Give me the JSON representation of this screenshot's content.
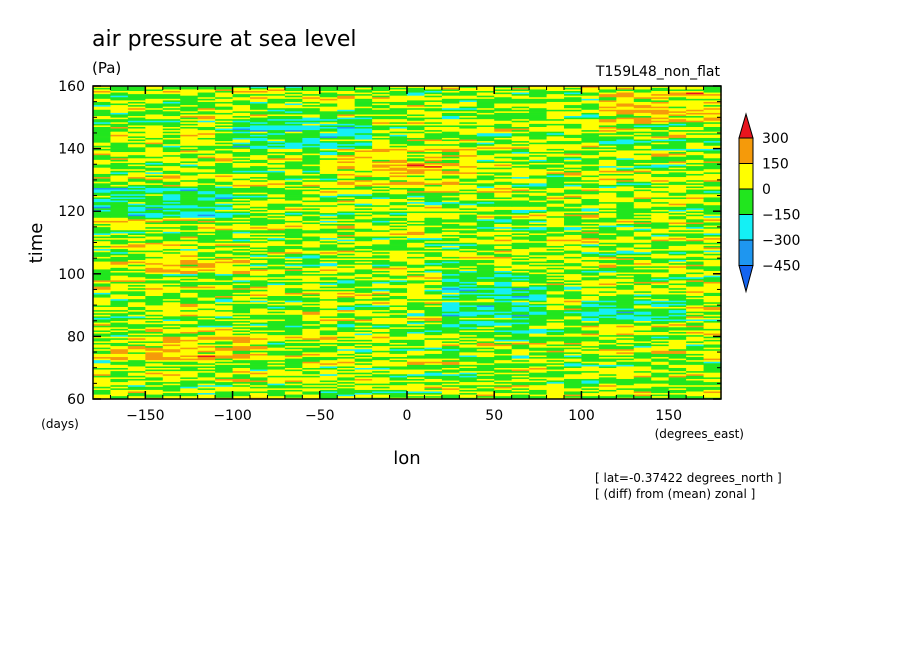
{
  "chart_data": {
    "type": "heatmap",
    "title": "air pressure at sea level",
    "units": "(Pa)",
    "run_label": "T159L48_non_flat",
    "xlabel": "lon",
    "x_units": "(degrees_east)",
    "ylabel": "time",
    "y_units": "(days)",
    "xlim": [
      -180,
      180
    ],
    "ylim": [
      60,
      160
    ],
    "x_ticks": [
      -150,
      -100,
      -50,
      0,
      50,
      100,
      150
    ],
    "y_ticks": [
      60,
      80,
      100,
      120,
      140,
      160
    ],
    "notes": [
      "[ lat=-0.37422 degrees_north ]",
      "[ (diff) from (mean) zonal ]"
    ],
    "colorbar": {
      "levels": [
        "300",
        "150",
        "0",
        "−150",
        "−300",
        "−450"
      ],
      "colors": [
        "#e8141e",
        "#f59a0a",
        "#ffff00",
        "#21e61e",
        "#14f0f5",
        "#1e96f0",
        "#1464f0"
      ]
    },
    "field": {
      "min": -450,
      "max": 300,
      "dominant_bins": [
        "0 to 150",
        "-150 to 0"
      ],
      "low_regions": [
        {
          "lon": [
            20,
            80
          ],
          "time": [
            82,
            100
          ]
        },
        {
          "lon": [
            100,
            160
          ],
          "time": [
            85,
            92
          ]
        },
        {
          "lon": [
            -180,
            -100
          ],
          "time": [
            118,
            128
          ]
        },
        {
          "lon": [
            -100,
            -20
          ],
          "time": [
            140,
            150
          ]
        }
      ],
      "high_regions": [
        {
          "lon": [
            -170,
            -80
          ],
          "time": [
            72,
            80
          ]
        },
        {
          "lon": [
            -40,
            40
          ],
          "time": [
            128,
            140
          ]
        },
        {
          "lon": [
            110,
            180
          ],
          "time": [
            148,
            158
          ]
        },
        {
          "lon": [
            -150,
            -90
          ],
          "time": [
            100,
            106
          ]
        }
      ]
    }
  }
}
